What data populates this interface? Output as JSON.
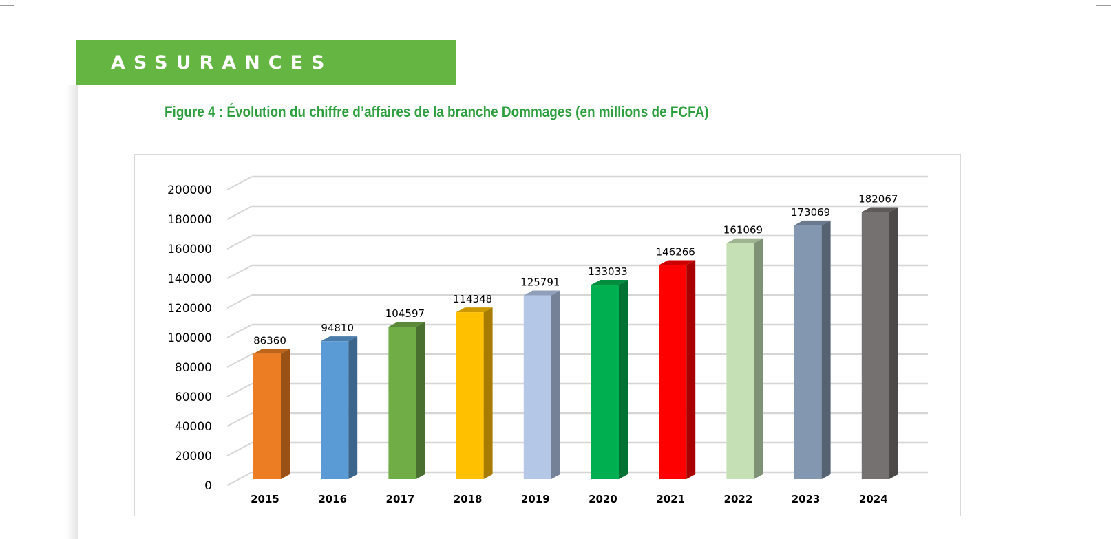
{
  "section_banner": "ASSURANCES",
  "figure_title": "Figure 4 : Évolution du chiffre d’affaires de la branche Dommages (en millions de FCFA)",
  "chart_data": {
    "type": "bar",
    "style": "3d-column",
    "title": "",
    "xlabel": "",
    "ylabel": "",
    "categories": [
      "2015",
      "2016",
      "2017",
      "2018",
      "2019",
      "2020",
      "2021",
      "2022",
      "2023",
      "2024"
    ],
    "values": [
      86360,
      94810,
      104597,
      114348,
      125791,
      133033,
      146266,
      161069,
      173069,
      182067
    ],
    "data_labels": [
      "86360",
      "94810",
      "104597",
      "114348",
      "125791",
      "133033",
      "146266",
      "161069",
      "173069",
      "182067"
    ],
    "colors": [
      "#ED7D22",
      "#5B9BD5",
      "#70AD47",
      "#FFC000",
      "#B4C7E7",
      "#00B050",
      "#FF0000",
      "#C5E0B4",
      "#8497B0",
      "#767171"
    ],
    "ylim": [
      0,
      200000
    ],
    "yticks": [
      "0",
      "20000",
      "40000",
      "60000",
      "80000",
      "100000",
      "120000",
      "140000",
      "160000",
      "180000",
      "200000"
    ],
    "grid": true,
    "legend": "none"
  }
}
